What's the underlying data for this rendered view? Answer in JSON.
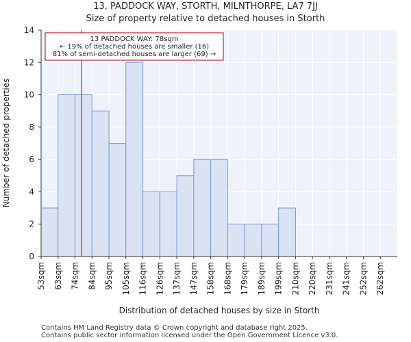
{
  "title": "13, PADDOCK WAY, STORTH, MILNTHORPE, LA7 7JJ",
  "subtitle": "Size of property relative to detached houses in Storth",
  "footer": {
    "line1": "Contains HM Land Registry data © Crown copyright and database right 2025.",
    "line2": "Contains public sector information licensed under the Open Government Licence v3.0."
  },
  "chart_data": {
    "type": "bar",
    "title": "Size of property relative to detached houses in Storth",
    "xlabel": "Distribution of detached houses by size in Storth",
    "ylabel": "Number of detached properties",
    "categories": [
      "53sqm",
      "63sqm",
      "74sqm",
      "84sqm",
      "95sqm",
      "105sqm",
      "116sqm",
      "126sqm",
      "137sqm",
      "147sqm",
      "158sqm",
      "168sqm",
      "179sqm",
      "189sqm",
      "199sqm",
      "210sqm",
      "220sqm",
      "231sqm",
      "241sqm",
      "252sqm",
      "262sqm"
    ],
    "values": [
      3,
      10,
      10,
      9,
      7,
      12,
      4,
      4,
      5,
      6,
      6,
      2,
      2,
      2,
      3,
      0,
      0,
      0,
      0,
      0,
      0
    ],
    "ylim": [
      0,
      14
    ],
    "yticks": [
      0,
      2,
      4,
      6,
      8,
      10,
      12,
      14
    ],
    "grid": true,
    "bar_color": "#dae3f4",
    "bar_edge_color": "#7b98c9",
    "marker": {
      "value": 78,
      "label": "13 PADDOCK WAY: 78sqm",
      "color": "#b30000",
      "annotation": [
        "13 PADDOCK WAY: 78sqm",
        "← 19% of detached houses are smaller (16)",
        "81% of semi-detached houses are larger (69) →"
      ]
    }
  }
}
